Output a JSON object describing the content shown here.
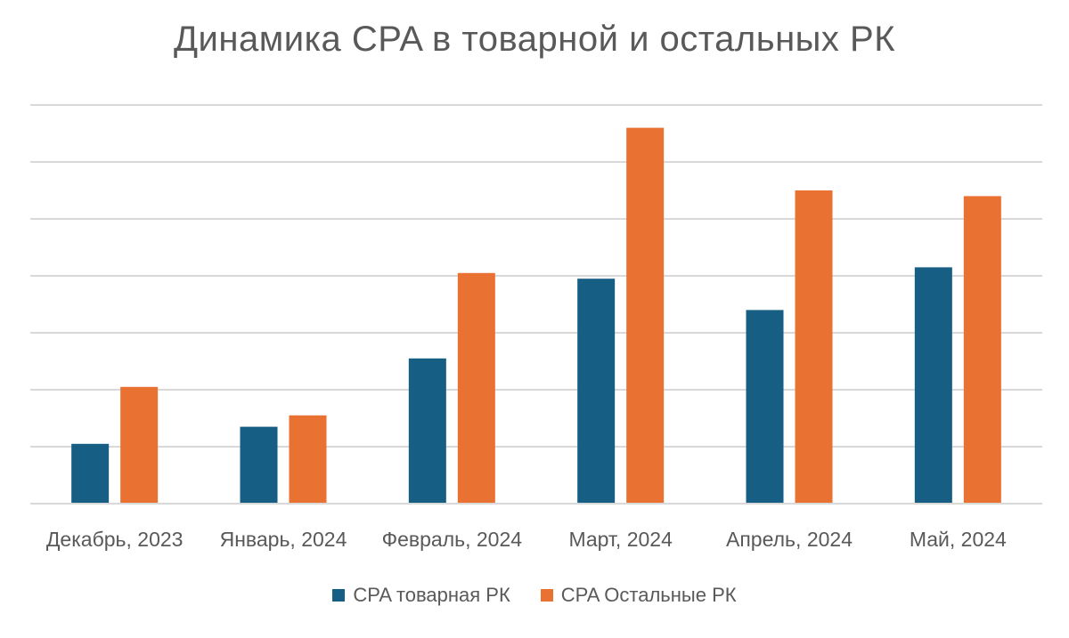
{
  "chart_data": {
    "type": "bar",
    "title": "Динамика CPA в товарной и остальных РК",
    "categories": [
      "Декабрь, 2023",
      "Январь, 2024",
      "Февраль, 2024",
      "Март, 2024",
      "Апрель, 2024",
      "Май, 2024"
    ],
    "series": [
      {
        "name": "CPA товарная РК",
        "color": "#165E83",
        "values": [
          1.05,
          1.35,
          2.55,
          3.95,
          3.4,
          4.15
        ]
      },
      {
        "name": "CPA Остальные РК",
        "color": "#E97132",
        "values": [
          2.05,
          1.55,
          4.05,
          6.6,
          5.5,
          5.4
        ]
      }
    ],
    "ylim": [
      0,
      7
    ],
    "gridlines": 7,
    "y_tick_labels_shown": false,
    "legend_position": "bottom",
    "gridline_color": "#d9d9d9"
  }
}
